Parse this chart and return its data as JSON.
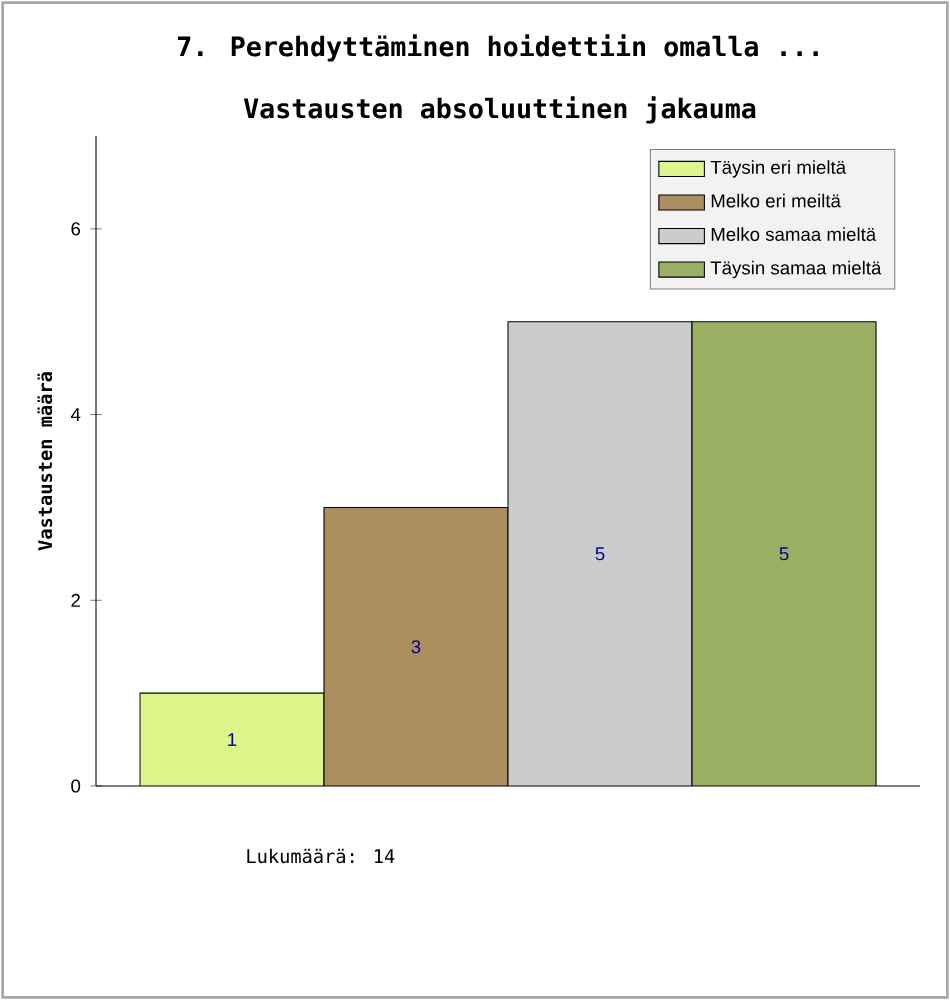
{
  "chart_data": {
    "type": "bar",
    "title": "7. Perehdyttäminen hoidettiin omalla ...",
    "subtitle": "Vastausten absoluuttinen jakauma",
    "ylabel": "Vastausten määrä",
    "categories": [
      null,
      null,
      null,
      null
    ],
    "series": [
      {
        "name": "Täysin eri mieltä",
        "color": "#ddf58a",
        "values": [
          1,
          null,
          null,
          null
        ]
      },
      {
        "name": "Melko eri meiltä",
        "color": "#ab8f5f",
        "values": [
          null,
          3,
          null,
          null
        ]
      },
      {
        "name": "Melko samaa mieltä",
        "color": "#cccccc",
        "values": [
          null,
          null,
          5,
          null
        ]
      },
      {
        "name": "Täysin samaa mieltä",
        "color": "#9aaf62",
        "values": [
          null,
          null,
          null,
          5
        ]
      }
    ],
    "ylim": [
      0,
      7
    ],
    "yticks": [
      0,
      2,
      4,
      6
    ],
    "data_labels": true,
    "legend": "top right",
    "grid": false,
    "annotations": [
      "Lukumäärä: 14"
    ]
  }
}
